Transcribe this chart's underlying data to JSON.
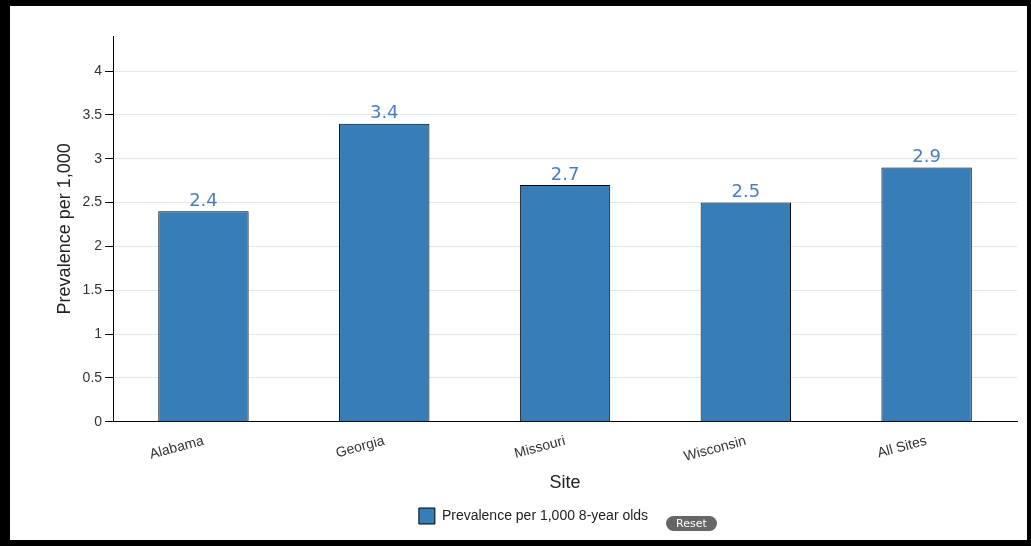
{
  "chart_data": {
    "type": "bar",
    "xlabel": "Site",
    "ylabel": "Prevalence per 1,000",
    "categories": [
      "Alabama",
      "Georgia",
      "Missouri",
      "Wisconsin",
      "All Sites"
    ],
    "series": [
      {
        "name": "Prevalence per 1,000 8-year olds",
        "color": "#377eb8",
        "values": [
          2.4,
          3.4,
          2.7,
          2.5,
          2.9
        ]
      }
    ],
    "ylim": [
      0,
      4.4
    ],
    "yticks": [
      0,
      0.5,
      1,
      1.5,
      2,
      2.5,
      3,
      3.5,
      4
    ],
    "grid": "y",
    "legend": "bottom",
    "data_labels": true,
    "annotations": [
      "Reset"
    ]
  }
}
